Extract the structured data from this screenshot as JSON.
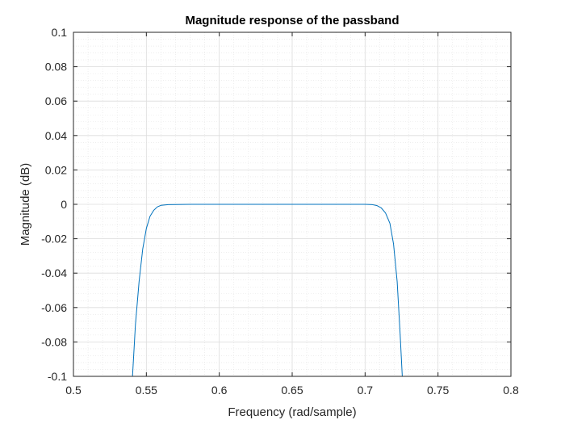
{
  "chart_data": {
    "type": "line",
    "title": "Magnitude response of the passband",
    "xlabel": "Frequency (rad/sample)",
    "ylabel": "Magnitude (dB)",
    "xlim": [
      0.5,
      0.8
    ],
    "ylim": [
      -0.1,
      0.1
    ],
    "xticks": [
      0.5,
      0.55,
      0.6,
      0.65,
      0.7,
      0.75,
      0.8
    ],
    "yticks": [
      -0.1,
      -0.08,
      -0.06,
      -0.04,
      -0.02,
      0,
      0.02,
      0.04,
      0.06,
      0.08,
      0.1
    ],
    "xtick_labels": [
      "0.5",
      "0.55",
      "0.6",
      "0.65",
      "0.7",
      "0.75",
      "0.8"
    ],
    "ytick_labels": [
      "-0.1",
      "-0.08",
      "-0.06",
      "-0.04",
      "-0.02",
      "0",
      "0.02",
      "0.04",
      "0.06",
      "0.08",
      "0.1"
    ],
    "grid": true,
    "minor_grid": true,
    "line_color": "#0072BD",
    "series": [
      {
        "x": [
          0.5405,
          0.5425,
          0.545,
          0.5475,
          0.55,
          0.5525,
          0.555,
          0.5575,
          0.56,
          0.565,
          0.57,
          0.58,
          0.6,
          0.65,
          0.7,
          0.705,
          0.708,
          0.711,
          0.714,
          0.717,
          0.7195,
          0.722,
          0.724,
          0.7255
        ],
        "y": [
          -0.1,
          -0.07,
          -0.045,
          -0.026,
          -0.014,
          -0.007,
          -0.0035,
          -0.0015,
          -0.0006,
          -0.0002,
          -0.0001,
          0,
          0,
          0,
          0,
          -0.0002,
          -0.0007,
          -0.002,
          -0.005,
          -0.011,
          -0.023,
          -0.045,
          -0.075,
          -0.1
        ]
      }
    ]
  }
}
